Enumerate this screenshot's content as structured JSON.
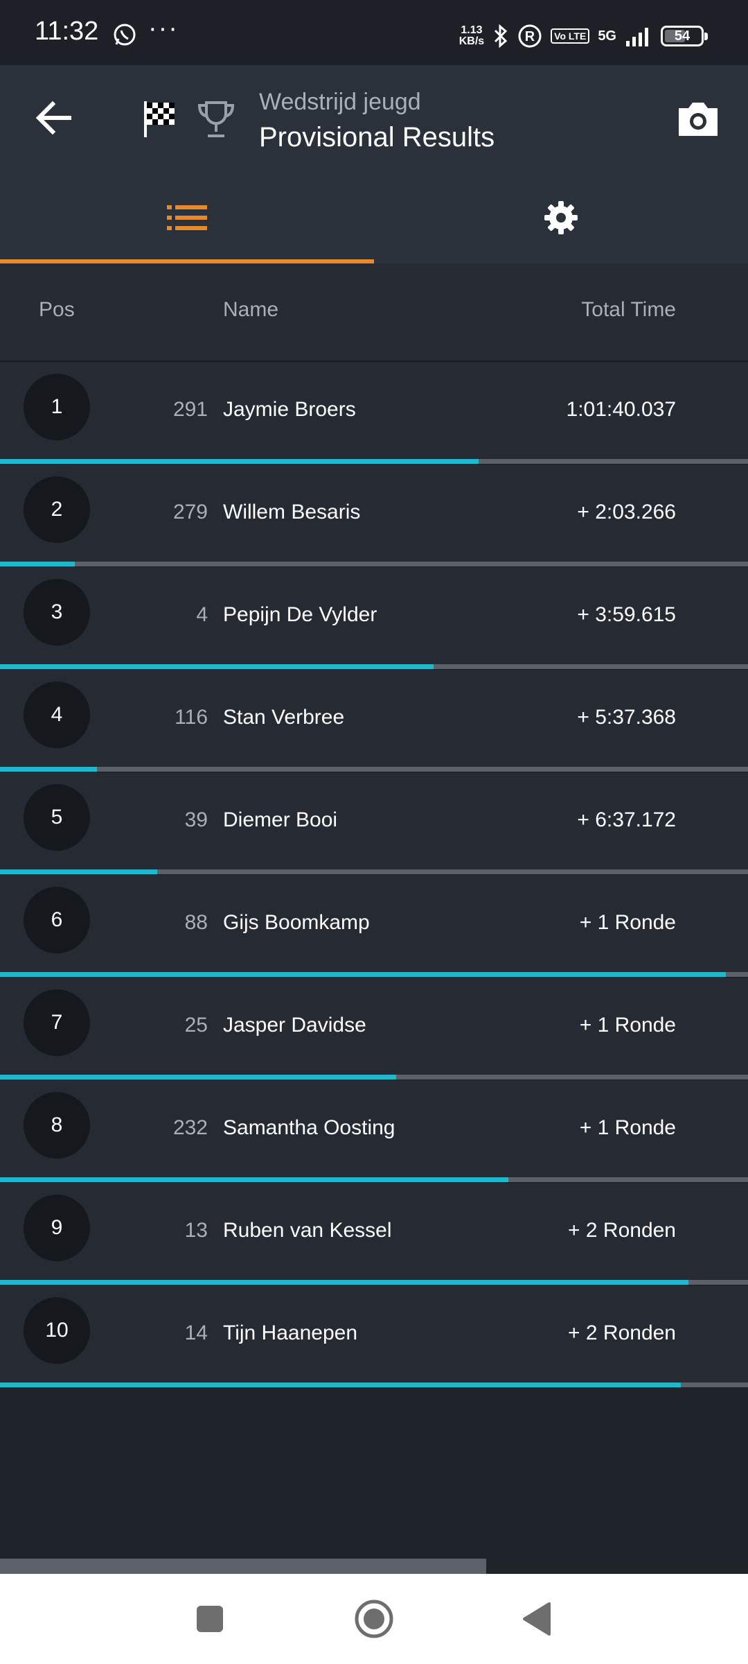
{
  "status_bar": {
    "time": "11:32",
    "network_speed_top": "1.13",
    "network_speed_unit": "KB/s",
    "volte": "Vo LTE",
    "network": "5G",
    "battery": "54"
  },
  "app_bar": {
    "subtitle": "Wedstrijd jeugd",
    "title": "Provisional Results",
    "icons": [
      "back-arrow",
      "checkered-flag",
      "trophy",
      "camera"
    ]
  },
  "tabs": [
    {
      "icon": "list",
      "active": true
    },
    {
      "icon": "gear",
      "active": false
    }
  ],
  "table": {
    "headers": {
      "pos": "Pos",
      "name": "Name",
      "total_time": "Total Time"
    },
    "rows": [
      {
        "pos": "1",
        "bib": "291",
        "name": "Jaymie Broers",
        "time": "1:01:40.037",
        "progress": 0.64
      },
      {
        "pos": "2",
        "bib": "279",
        "name": "Willem Besaris",
        "time": "+ 2:03.266",
        "progress": 0.1
      },
      {
        "pos": "3",
        "bib": "4",
        "name": "Pepijn De Vylder",
        "time": "+ 3:59.615",
        "progress": 0.58
      },
      {
        "pos": "4",
        "bib": "116",
        "name": "Stan Verbree",
        "time": "+ 5:37.368",
        "progress": 0.13
      },
      {
        "pos": "5",
        "bib": "39",
        "name": "Diemer Booi",
        "time": "+ 6:37.172",
        "progress": 0.21
      },
      {
        "pos": "6",
        "bib": "88",
        "name": "Gijs Boomkamp",
        "time": "+ 1 Ronde",
        "progress": 0.97
      },
      {
        "pos": "7",
        "bib": "25",
        "name": "Jasper Davidse",
        "time": "+ 1 Ronde",
        "progress": 0.53
      },
      {
        "pos": "8",
        "bib": "232",
        "name": "Samantha Oosting",
        "time": "+ 1 Ronde",
        "progress": 0.68
      },
      {
        "pos": "9",
        "bib": "13",
        "name": "Ruben van Kessel",
        "time": "+ 2 Ronden",
        "progress": 0.92
      },
      {
        "pos": "10",
        "bib": "14",
        "name": "Tijn Haanepen",
        "time": "+ 2 Ronden",
        "progress": 0.91
      }
    ]
  },
  "colors": {
    "accent": "#e8892b",
    "progress": "#21b7cc",
    "background": "#1f232a"
  }
}
